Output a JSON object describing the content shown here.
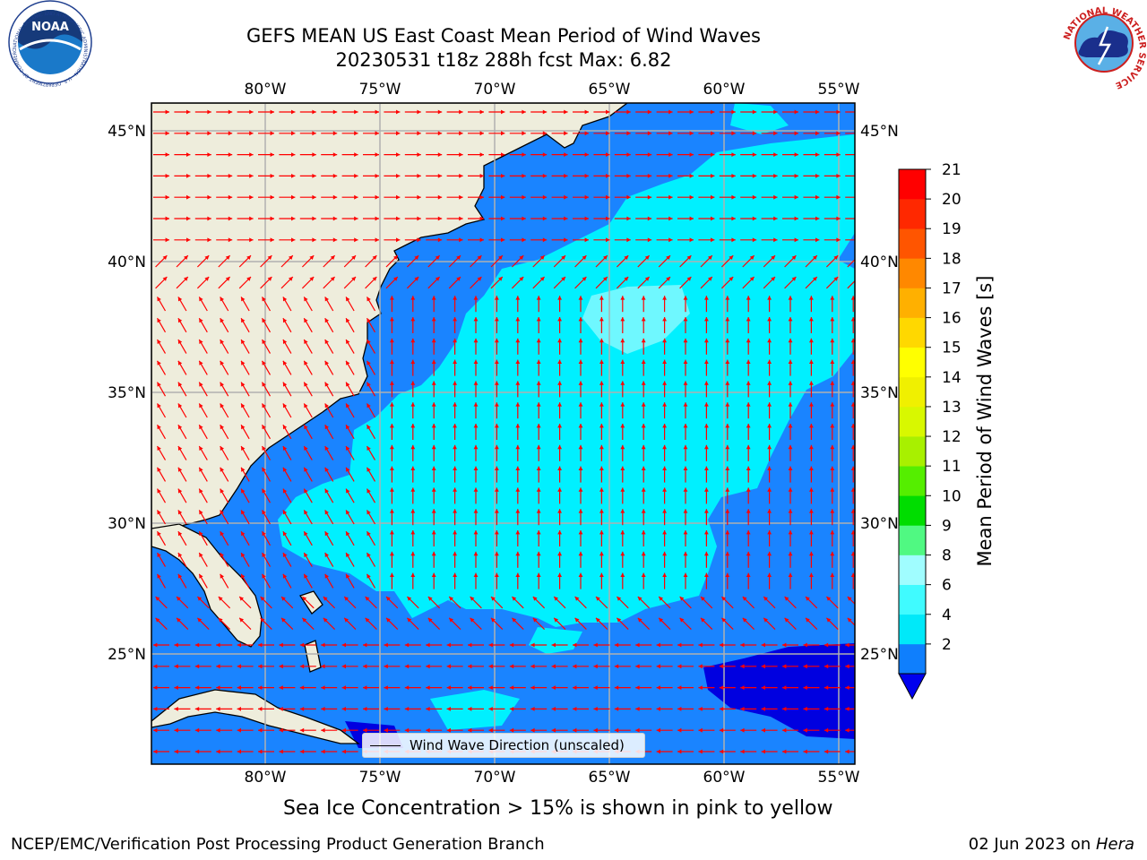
{
  "title_line1": "GEFS MEAN US East Coast Mean Period of Wind Waves",
  "title_line2": "20230531 t18z 288h fcst   Max: 6.82",
  "map": {
    "lon_ticks": [
      "80°W",
      "75°W",
      "70°W",
      "65°W",
      "60°W",
      "55°W"
    ],
    "lat_ticks": [
      "45°N",
      "40°N",
      "35°N",
      "30°N",
      "25°N"
    ],
    "extent": {
      "lon": [
        -85,
        -54.7
      ],
      "lat": [
        20.5,
        46
      ]
    },
    "colors": {
      "land": "#eeeddc",
      "ocean_2_4": "#1a84ff",
      "ocean_4_6": "#00f0ff",
      "ocean_0_2": "#0000e0",
      "arrow": "#ff0000",
      "grid": "#b0b0b0"
    },
    "legend_label": "Wind Wave Direction (unscaled)"
  },
  "colorbar": {
    "label": "Mean Period of Wind Waves [s]",
    "ticks": [
      "21",
      "20",
      "19",
      "18",
      "17",
      "16",
      "15",
      "14",
      "13",
      "12",
      "11",
      "10",
      "9",
      "8",
      "6",
      "4",
      "2"
    ],
    "colors_bottom_to_top": [
      "#0f7ffd",
      "#00e9f9",
      "#40fbff",
      "#a0fdff",
      "#50f982",
      "#00dd00",
      "#55ee00",
      "#a8f000",
      "#d8f800",
      "#f0f000",
      "#ffff00",
      "#ffd800",
      "#ffb000",
      "#ff8800",
      "#ff5500",
      "#ff2800",
      "#ff0000"
    ],
    "extend_color": "#0000ee"
  },
  "caption": "Sea Ice Concentration > 15% is shown in pink to yellow",
  "footer_left": "NCEP/EMC/Verification Post Processing Product Generation Branch",
  "footer_right_prefix": "02 Jun 2023 on ",
  "footer_right_system": "Hera",
  "logos": {
    "noaa": "NOAA",
    "noaa_ring": "NATIONAL OCEANIC AND ATMOSPHERIC ADMINISTRATION · U.S. DEPARTMENT OF COMMERCE",
    "nws_ring": "NATIONAL WEATHER SERVICE"
  }
}
